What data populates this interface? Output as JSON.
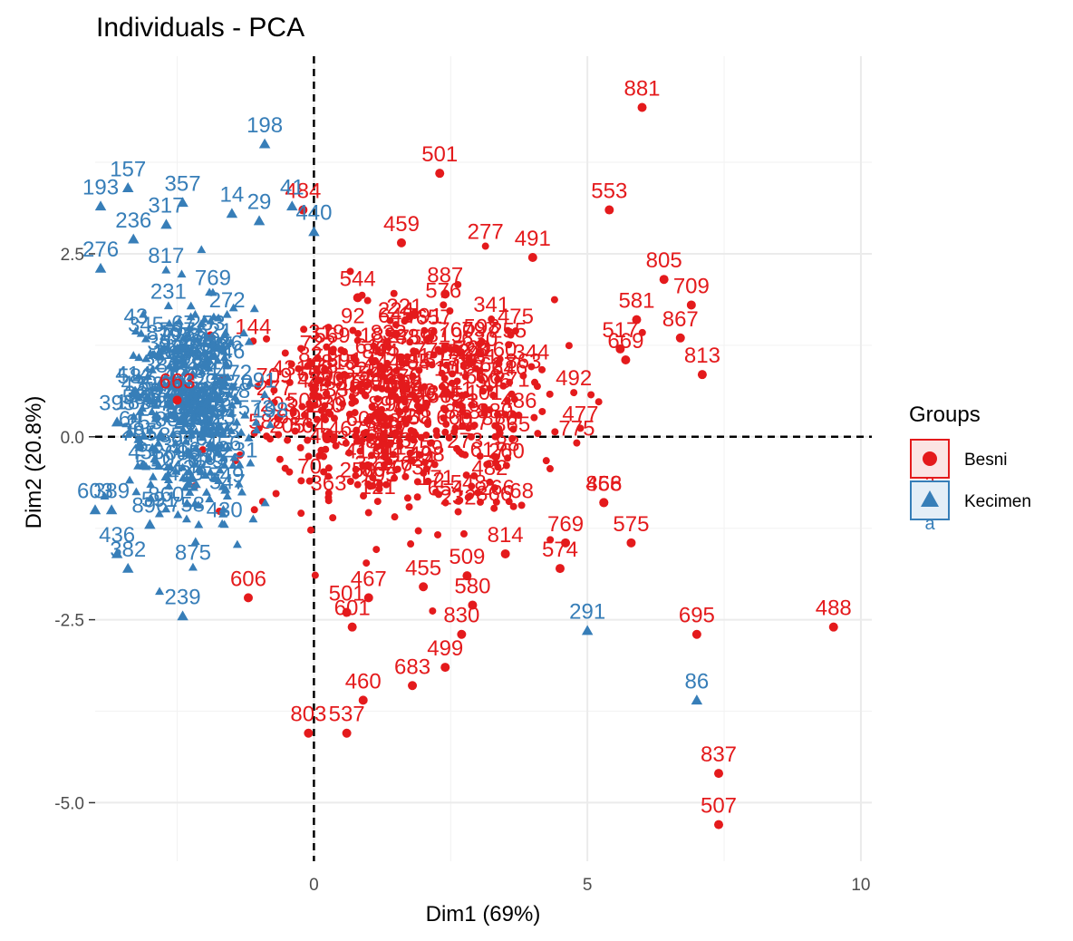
{
  "chart_data": {
    "type": "scatter",
    "title": "Individuals - PCA",
    "xlabel": "Dim1 (69%)",
    "ylabel": "Dim2 (20.8%)",
    "xlim": [
      -4.0,
      10.2
    ],
    "ylim": [
      -5.8,
      5.2
    ],
    "x_ticks": [
      0,
      5,
      10
    ],
    "x_tick_labels": [
      "0",
      "5",
      "10"
    ],
    "y_ticks": [
      2.5,
      0.0,
      -2.5,
      -5.0
    ],
    "y_tick_labels": [
      "2.5",
      "0.0",
      "-2.5",
      "-5.0"
    ],
    "grid": true,
    "reference_lines": {
      "x": 0,
      "y": 0,
      "style": "dashed"
    },
    "legend": {
      "title": "Groups",
      "position": "right",
      "entries": [
        {
          "name": "Besni",
          "color": "#e41a1c",
          "marker": "circle",
          "key_letter": "a"
        },
        {
          "name": "Kecimen",
          "color": "#377eb8",
          "marker": "triangle",
          "key_letter": "a"
        }
      ]
    },
    "series": [
      {
        "name": "Besni",
        "color": "#e41a1c",
        "marker": "circle",
        "points": [
          {
            "x": 6.0,
            "y": 4.5,
            "label": "881"
          },
          {
            "x": 2.3,
            "y": 3.6,
            "label": "501"
          },
          {
            "x": 5.4,
            "y": 3.1,
            "label": "553"
          },
          {
            "x": 1.6,
            "y": 2.65,
            "label": "459"
          },
          {
            "x": 4.0,
            "y": 2.45,
            "label": "491"
          },
          {
            "x": 6.4,
            "y": 2.15,
            "label": "805"
          },
          {
            "x": 6.9,
            "y": 1.8,
            "label": "709"
          },
          {
            "x": 6.7,
            "y": 1.35,
            "label": "867"
          },
          {
            "x": 7.1,
            "y": 0.85,
            "label": "813"
          },
          {
            "x": 5.7,
            "y": 1.05,
            "label": "669"
          },
          {
            "x": 5.6,
            "y": 1.2,
            "label": "517"
          },
          {
            "x": 5.9,
            "y": 1.6,
            "label": "581"
          },
          {
            "x": -0.2,
            "y": 3.1,
            "label": "484"
          },
          {
            "x": 5.3,
            "y": -0.9,
            "label": "856"
          },
          {
            "x": 5.3,
            "y": -0.9,
            "label": "468"
          },
          {
            "x": 5.8,
            "y": -1.45,
            "label": "575"
          },
          {
            "x": 4.6,
            "y": -1.45,
            "label": "769"
          },
          {
            "x": 4.5,
            "y": -1.8,
            "label": "574"
          },
          {
            "x": 3.5,
            "y": -1.6,
            "label": "814"
          },
          {
            "x": 2.8,
            "y": -1.9,
            "label": "509"
          },
          {
            "x": 7.0,
            "y": -2.7,
            "label": "695"
          },
          {
            "x": 9.5,
            "y": -2.6,
            "label": "488"
          },
          {
            "x": 2.9,
            "y": -2.3,
            "label": "580"
          },
          {
            "x": 2.7,
            "y": -2.7,
            "label": "830"
          },
          {
            "x": 2.4,
            "y": -3.15,
            "label": "499"
          },
          {
            "x": 1.8,
            "y": -3.4,
            "label": "683"
          },
          {
            "x": 0.9,
            "y": -3.6,
            "label": "460"
          },
          {
            "x": -0.1,
            "y": -4.05,
            "label": "803"
          },
          {
            "x": 0.6,
            "y": -4.05,
            "label": "537"
          },
          {
            "x": 7.4,
            "y": -4.6,
            "label": "837"
          },
          {
            "x": 7.4,
            "y": -5.3,
            "label": "507"
          },
          {
            "x": 1.0,
            "y": -2.2,
            "label": "467"
          },
          {
            "x": 0.6,
            "y": -2.4,
            "label": "501"
          },
          {
            "x": 0.7,
            "y": -2.6,
            "label": "601"
          },
          {
            "x": 2.0,
            "y": -2.05,
            "label": "455"
          },
          {
            "x": 1.5,
            "y": 1.4,
            "label": "645"
          },
          {
            "x": 2.6,
            "y": 1.2,
            "label": "760"
          },
          {
            "x": 2.4,
            "y": 1.95,
            "label": "887"
          },
          {
            "x": 0.8,
            "y": 1.9,
            "label": "544"
          },
          {
            "x": -2.5,
            "y": 0.5,
            "label": "663"
          },
          {
            "x": -1.2,
            "y": -2.2,
            "label": "606"
          }
        ]
      },
      {
        "name": "Kecimen",
        "color": "#377eb8",
        "marker": "triangle",
        "points": [
          {
            "x": -0.9,
            "y": 4.0,
            "label": "198"
          },
          {
            "x": -3.4,
            "y": 3.4,
            "label": "157"
          },
          {
            "x": -3.9,
            "y": 3.15,
            "label": "193"
          },
          {
            "x": -2.4,
            "y": 3.2,
            "label": "357"
          },
          {
            "x": -2.7,
            "y": 2.9,
            "label": "317"
          },
          {
            "x": -3.3,
            "y": 2.7,
            "label": "236"
          },
          {
            "x": -3.9,
            "y": 2.3,
            "label": "276"
          },
          {
            "x": -1.5,
            "y": 3.05,
            "label": "14"
          },
          {
            "x": -1.0,
            "y": 2.95,
            "label": "29"
          },
          {
            "x": -0.4,
            "y": 3.15,
            "label": "41"
          },
          {
            "x": 0.0,
            "y": 2.8,
            "label": "440"
          },
          {
            "x": 5.0,
            "y": -2.65,
            "label": "291"
          },
          {
            "x": 7.0,
            "y": -3.6,
            "label": "86"
          },
          {
            "x": -4.0,
            "y": -1.0,
            "label": "603"
          },
          {
            "x": -3.6,
            "y": -1.6,
            "label": "436"
          },
          {
            "x": -3.4,
            "y": -1.8,
            "label": "382"
          },
          {
            "x": -2.4,
            "y": -2.45,
            "label": "239"
          },
          {
            "x": -3.7,
            "y": -1.0,
            "label": "389"
          },
          {
            "x": -3.0,
            "y": -1.2,
            "label": "896"
          },
          {
            "x": -3.3,
            "y": 0.6,
            "label": "414"
          },
          {
            "x": -3.6,
            "y": 0.2,
            "label": "395"
          },
          {
            "x": -2.0,
            "y": 1.0,
            "label": "262"
          },
          {
            "x": -2.5,
            "y": 1.2,
            "label": "597"
          }
        ]
      }
    ],
    "dense_clusters": [
      {
        "series": "Besni",
        "center": [
          1.5,
          0.3
        ],
        "spread": [
          2.8,
          1.4
        ],
        "count": 420
      },
      {
        "series": "Kecimen",
        "center": [
          -2.2,
          0.3
        ],
        "spread": [
          1.1,
          1.3
        ],
        "count": 330
      }
    ]
  }
}
